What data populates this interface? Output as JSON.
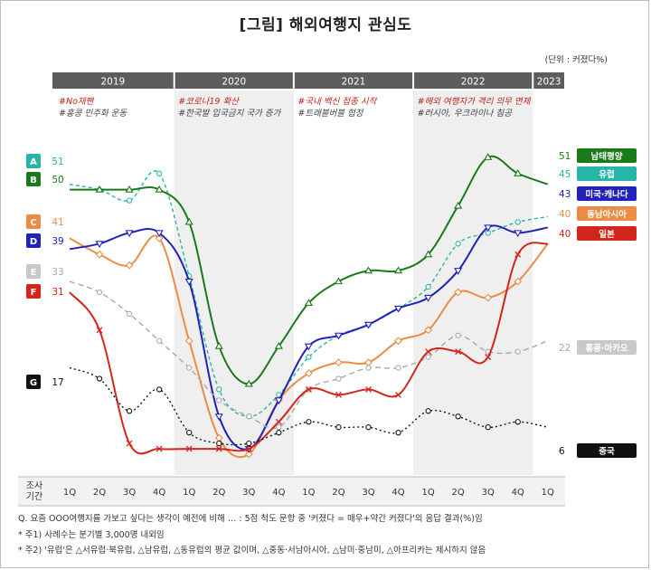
{
  "header": {
    "title": "[그림] 해외여행지 관심도",
    "unit": "(단위 : 커졌다%)"
  },
  "chart_data": {
    "type": "line",
    "title": "[그림] 해외여행지 관심도",
    "unit_note": "(단위 : 커졌다%)",
    "years": [
      {
        "label": "2019",
        "from": 0,
        "to": 3
      },
      {
        "label": "2020",
        "from": 4,
        "to": 7
      },
      {
        "label": "2021",
        "from": 8,
        "to": 11
      },
      {
        "label": "2022",
        "from": 12,
        "to": 15
      },
      {
        "label": "2023",
        "from": 16,
        "to": 16
      }
    ],
    "x_row_label": "조사\n기간",
    "categories": [
      "1Q",
      "2Q",
      "3Q",
      "4Q",
      "1Q",
      "2Q",
      "3Q",
      "4Q",
      "1Q",
      "2Q",
      "3Q",
      "4Q",
      "1Q",
      "2Q",
      "3Q",
      "4Q",
      "1Q"
    ],
    "shaded_years": [
      "2020",
      "2022"
    ],
    "ylim": [
      0,
      60
    ],
    "grid": false,
    "annotations": [
      {
        "lines": [
          "#No재팬",
          "#홍콩 민주화 운동"
        ],
        "start": 0
      },
      {
        "lines": [
          "#코로나19 확산",
          "#한국발 입국금지 국가 증가"
        ],
        "start": 4
      },
      {
        "lines": [
          "#국내 백신 접종 시작",
          "#트래블버블 협정"
        ],
        "start": 8
      },
      {
        "lines": [
          "#해외 여행자가 격리 의무 면제",
          "#러시아, 우크라이나 침공"
        ],
        "start": 12
      }
    ],
    "series": [
      {
        "letter": "A",
        "name": "유럽",
        "color": "#27b5a8",
        "dash": "4,3",
        "marker": "circle",
        "start_value": "51",
        "end_value": "45",
        "values": [
          51,
          50,
          48,
          53,
          34,
          13,
          8,
          12,
          19,
          23,
          25,
          28,
          32,
          40,
          42,
          44,
          45
        ]
      },
      {
        "letter": "B",
        "name": "남태평양",
        "color": "#197a19",
        "dash": "",
        "marker": "triangle-up",
        "start_value": "50",
        "end_value": "51",
        "values": [
          50,
          50,
          50,
          50,
          44,
          21,
          14,
          21,
          29,
          33,
          35,
          35,
          38,
          47,
          56,
          53,
          51
        ]
      },
      {
        "letter": "C",
        "name": "동남아시아",
        "color": "#ec8c44",
        "dash": "",
        "marker": "diamond",
        "start_value": "41",
        "end_value": "40",
        "values": [
          41,
          38,
          36,
          41,
          22,
          4,
          1,
          11,
          16,
          18,
          18,
          22,
          24,
          31,
          30,
          33,
          40
        ]
      },
      {
        "letter": "D",
        "name": "미국·캐나다",
        "color": "#2222b8",
        "dash": "",
        "marker": "triangle-down",
        "start_value": "39",
        "end_value": "43",
        "values": [
          39,
          40,
          42,
          42,
          33,
          8,
          2,
          11,
          21,
          23,
          25,
          28,
          30,
          35,
          43,
          42,
          43
        ]
      },
      {
        "letter": "E",
        "name": "홍콩·마카오",
        "color": "#a8a8a8",
        "dash": "6,4",
        "marker": "circle",
        "start_value": "33",
        "end_value": "22",
        "values": [
          33,
          31,
          27,
          22,
          17,
          11,
          8,
          6,
          13,
          15,
          17,
          17,
          19,
          23,
          20,
          20,
          22
        ]
      },
      {
        "letter": "F",
        "name": "일본",
        "color": "#d4251c",
        "dash": "",
        "marker": "x",
        "start_value": "31",
        "end_value": "40",
        "values": [
          31,
          24,
          3,
          2,
          2,
          2,
          2,
          7,
          13,
          12,
          13,
          12,
          20,
          20,
          19,
          38,
          40
        ]
      },
      {
        "letter": "G",
        "name": "중국",
        "color": "#111111",
        "dash": "2,3",
        "marker": "circle",
        "start_value": "17",
        "end_value": "6",
        "values": [
          17,
          15,
          9,
          13,
          5,
          3,
          3,
          5,
          7,
          6,
          6,
          5,
          9,
          8,
          6,
          7,
          6
        ]
      }
    ]
  },
  "footnotes": [
    "Q. 요즘 OOO여행지를 가보고 싶다는 생각이 예전에 비해 … : 5점 척도 문항 중 '커졌다 = 매우+약간 커졌다'의 응답 결과(%)임",
    "* 주1) 사례수는 분기별 3,000명 내외임",
    "* 주2) '유럽'은 △서유럽·북유럽, △남유럽, △동유럽의 평균 값이며, △중동·서남아시아, △남미·중남미, △아프리카는 제시하지 않음"
  ]
}
